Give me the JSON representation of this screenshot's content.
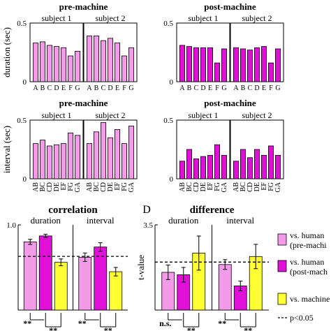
{
  "colors": {
    "pre": "#f39ae8",
    "post": "#e010d8",
    "machine": "#ffff33",
    "edge": "#000000"
  },
  "chart_data": [
    {
      "type": "bar",
      "title": "pre-machine",
      "ylabel": "duration (sec)",
      "ylim": [
        0,
        0.5
      ],
      "yticks": [
        "0",
        "0.5"
      ],
      "categories": [
        "A",
        "B",
        "C",
        "D",
        "E",
        "F",
        "G"
      ],
      "color": "pre",
      "series": [
        {
          "name": "subject 1",
          "values": [
            0.33,
            0.34,
            0.31,
            0.3,
            0.29,
            0.22,
            0.26
          ]
        },
        {
          "name": "subject 2",
          "values": [
            0.39,
            0.39,
            0.35,
            0.37,
            0.33,
            0.22,
            0.29
          ]
        }
      ]
    },
    {
      "type": "bar",
      "title": "post-machine",
      "ylabel": "",
      "ylim": [
        0,
        0.5
      ],
      "yticks": [
        "0",
        "0.5"
      ],
      "categories": [
        "A",
        "B",
        "C",
        "D",
        "E",
        "F",
        "G"
      ],
      "color": "post",
      "series": [
        {
          "name": "subject 1",
          "values": [
            0.31,
            0.3,
            0.29,
            0.29,
            0.29,
            0.16,
            0.28
          ]
        },
        {
          "name": "subject 2",
          "values": [
            0.29,
            0.28,
            0.27,
            0.29,
            0.3,
            0.16,
            0.28
          ]
        }
      ]
    },
    {
      "type": "bar",
      "title": "pre-machine",
      "ylabel": "interval (sec)",
      "ylim": [
        0,
        0.5
      ],
      "yticks": [
        "0",
        "0.5"
      ],
      "categories": [
        "AB",
        "BC",
        "CD",
        "DE",
        "EF",
        "FG",
        "GA"
      ],
      "color": "pre",
      "series": [
        {
          "name": "subject 1",
          "values": [
            0.3,
            0.33,
            0.28,
            0.29,
            0.3,
            0.39,
            0.37
          ]
        },
        {
          "name": "subject 2",
          "values": [
            0.3,
            0.4,
            0.48,
            0.35,
            0.42,
            0.3,
            0.45
          ]
        }
      ]
    },
    {
      "type": "bar",
      "title": "post-machine",
      "ylabel": "",
      "ylim": [
        0,
        0.5
      ],
      "yticks": [
        "0",
        "0.5"
      ],
      "categories": [
        "AB",
        "BC",
        "CD",
        "DE",
        "EF",
        "FG",
        "GA"
      ],
      "color": "post",
      "series": [
        {
          "name": "subject 1",
          "values": [
            0.15,
            0.25,
            0.17,
            0.19,
            0.2,
            0.29,
            0.2
          ]
        },
        {
          "name": "subject 2",
          "values": [
            0.15,
            0.25,
            0.18,
            0.25,
            0.2,
            0.28,
            0.2
          ]
        }
      ]
    },
    {
      "type": "bar",
      "title": "correlation",
      "ylabel": "",
      "ylim": [
        0,
        1.0
      ],
      "yticks": [
        "0",
        "1.0"
      ],
      "groups": [
        "duration",
        "interval"
      ],
      "threshold": 0.63,
      "series": [
        {
          "name": "vs. human (pre-machine)",
          "color": "pre",
          "values": [
            0.8,
            0.62
          ],
          "errors": [
            0.03,
            0.05
          ]
        },
        {
          "name": "vs. human (post-machine)",
          "color": "post",
          "values": [
            0.87,
            0.74
          ],
          "errors": [
            0.02,
            0.05
          ]
        },
        {
          "name": "vs. machine",
          "color": "machine",
          "values": [
            0.56,
            0.45
          ],
          "errors": [
            0.04,
            0.05
          ]
        }
      ],
      "significance": [
        "**",
        "**",
        "**",
        "**"
      ]
    },
    {
      "type": "bar",
      "title": "difference",
      "panel_label": "D",
      "ylabel": "t-value",
      "ylim": [
        0,
        3.5
      ],
      "yticks": [
        "0",
        "3.5"
      ],
      "groups": [
        "duration",
        "interval"
      ],
      "threshold": 1.97,
      "series": [
        {
          "name": "vs. human (pre-machine)",
          "color": "pre",
          "values": [
            1.55,
            1.87
          ],
          "errors": [
            0.3,
            0.2
          ]
        },
        {
          "name": "vs. human (post-machine)",
          "color": "post",
          "values": [
            1.45,
            0.99
          ],
          "errors": [
            0.3,
            0.2
          ]
        },
        {
          "name": "vs. machine",
          "color": "machine",
          "values": [
            2.34,
            2.2
          ],
          "errors": [
            0.7,
            0.5
          ]
        }
      ],
      "significance": [
        "n.s.",
        "**",
        "**",
        "**"
      ]
    }
  ],
  "legend": {
    "items": [
      {
        "color": "pre",
        "line1": "vs. human",
        "line2": "(pre-machi"
      },
      {
        "color": "post",
        "line1": "vs. human",
        "line2": "(post-mach"
      },
      {
        "color": "machine",
        "line1": "vs. machine",
        "line2": ""
      }
    ],
    "threshold_label": "p<0.05"
  }
}
